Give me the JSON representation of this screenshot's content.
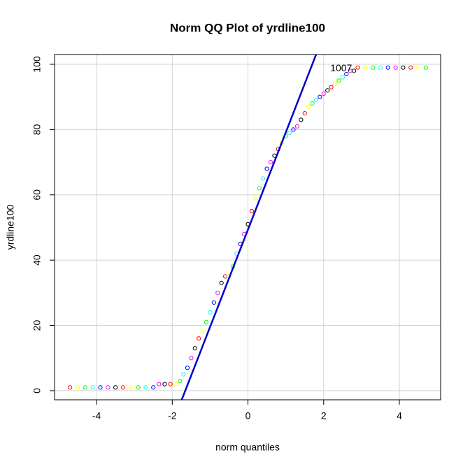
{
  "chart_data": {
    "type": "scatter",
    "title": "Norm QQ Plot of yrdline100",
    "xlabel": "norm quantiles",
    "ylabel": "yrdline100",
    "annotations": [
      {
        "text": "1007",
        "x": 2.75,
        "y": 98.6
      }
    ],
    "xlim": [
      -5.11,
      5.09
    ],
    "ylim": [
      -2.8,
      103
    ],
    "xticks": [
      -4,
      -2,
      0,
      2,
      4
    ],
    "yticks": [
      0,
      20,
      40,
      60,
      80,
      100
    ],
    "grid": true,
    "point_colors": [
      "#ff0000",
      "#ffff00",
      "#00ff00",
      "#00ffff",
      "#0000ff",
      "#ff00ff",
      "#000000"
    ],
    "reference_line": {
      "x": [
        -1.75,
        1.8
      ],
      "values": [
        -2.8,
        103
      ],
      "color": "#0000cd"
    },
    "series": [
      {
        "x": [
          -4.7,
          -4.5,
          -4.3,
          -4.1,
          -3.9,
          -3.7,
          -3.5,
          -3.3,
          -3.1,
          -2.9,
          -2.7,
          -2.5,
          -2.35,
          -2.2,
          -2.05,
          -1.9,
          -1.8,
          -1.7,
          -1.6,
          -1.5,
          -1.4,
          -1.3,
          -1.2,
          -1.1,
          -1.0,
          -0.9,
          -0.8,
          -0.7,
          -0.6,
          -0.5,
          -0.4,
          -0.3,
          -0.2,
          -0.1,
          0,
          0.1,
          0.2,
          0.3,
          0.4,
          0.5,
          0.6,
          0.7,
          0.8,
          0.9,
          1.0,
          1.1,
          1.2,
          1.3,
          1.4,
          1.5,
          1.6,
          1.7,
          1.8,
          1.9,
          2.0,
          2.1,
          2.2,
          2.3,
          2.4,
          2.5,
          2.6,
          2.7,
          2.8,
          2.9,
          3.1,
          3.3,
          3.5,
          3.7,
          3.9,
          4.1,
          4.3,
          4.5,
          4.7
        ],
        "values": [
          1,
          1,
          1,
          1,
          1,
          1,
          1,
          1,
          1,
          1,
          1,
          1,
          2,
          2,
          2,
          2,
          3,
          5,
          7,
          10,
          13,
          16,
          18,
          21,
          24,
          27,
          30,
          33,
          35,
          35,
          38,
          42,
          45,
          48,
          51,
          55,
          59,
          62,
          65,
          68,
          70,
          72,
          74,
          76,
          78,
          79,
          80,
          81,
          83,
          85,
          87,
          88,
          89,
          90,
          91,
          92,
          93,
          94,
          95,
          96,
          97,
          98,
          98,
          99,
          99,
          99,
          99,
          99,
          99,
          99,
          99,
          99,
          99
        ]
      }
    ]
  }
}
